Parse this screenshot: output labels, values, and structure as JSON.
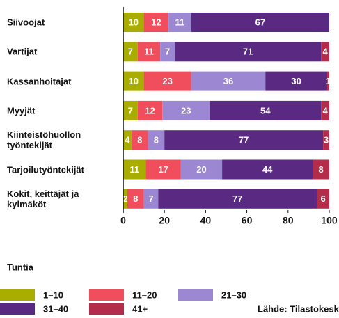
{
  "chart_data": {
    "type": "stacked-bar-horizontal",
    "categories": [
      "Siivoojat",
      "Vartijat",
      "Kassanhoitajat",
      "Myyjät",
      "Kiinteistöhuollon työntekijät",
      "Tarjoilutyöntekijät",
      "Kokit, keittäjät ja kylmäköt"
    ],
    "series": [
      {
        "name": "1–10",
        "color": "#a8ad00",
        "values": [
          10,
          7,
          10,
          7,
          4,
          11,
          2
        ]
      },
      {
        "name": "11–20",
        "color": "#f04d5d",
        "values": [
          12,
          11,
          23,
          12,
          8,
          17,
          8
        ]
      },
      {
        "name": "21–30",
        "color": "#9c88d2",
        "values": [
          11,
          7,
          36,
          23,
          8,
          20,
          7
        ]
      },
      {
        "name": "31–40",
        "color": "#5a2a82",
        "values": [
          67,
          71,
          30,
          54,
          77,
          44,
          77
        ]
      },
      {
        "name": "41+",
        "color": "#b32d4a",
        "values": [
          null,
          4,
          1,
          4,
          3,
          8,
          6
        ]
      }
    ],
    "xlim": [
      0,
      100
    ],
    "xticks": [
      0,
      20,
      40,
      60,
      80,
      100
    ],
    "legend_title": "Tuntia",
    "source": "Lähde: Tilastokeskus"
  }
}
